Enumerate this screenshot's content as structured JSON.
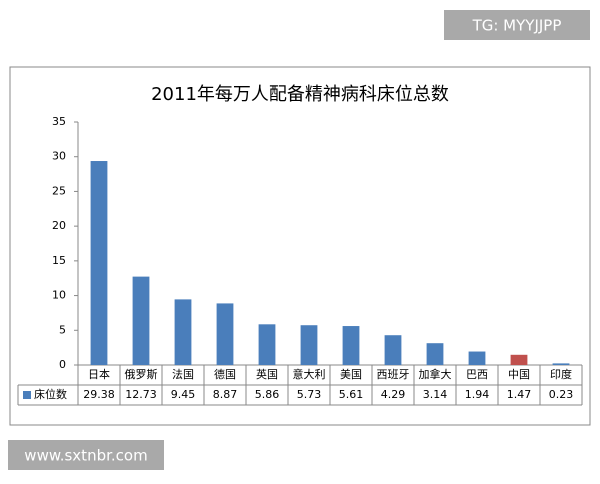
{
  "chart_data": {
    "type": "bar",
    "title": "2011年每万人配备精神病科床位总数",
    "categories": [
      "日本",
      "俄罗斯",
      "法国",
      "德国",
      "英国",
      "意大利",
      "美国",
      "西班牙",
      "加拿大",
      "巴西",
      "中国",
      "印度"
    ],
    "series": [
      {
        "name": "床位数",
        "color": "#4a7ebb",
        "values": [
          29.38,
          12.73,
          9.45,
          8.87,
          5.86,
          5.73,
          5.61,
          4.29,
          3.14,
          1.94,
          1.47,
          0.23
        ],
        "colors": [
          "#4a7ebb",
          "#4a7ebb",
          "#4a7ebb",
          "#4a7ebb",
          "#4a7ebb",
          "#4a7ebb",
          "#4a7ebb",
          "#4a7ebb",
          "#4a7ebb",
          "#4a7ebb",
          "#c0504d",
          "#4a7ebb"
        ]
      }
    ],
    "ylim": [
      0,
      35
    ],
    "yticks": [
      0,
      5,
      10,
      15,
      20,
      25,
      30,
      35
    ],
    "grid": false,
    "data_table": true
  },
  "watermarks": {
    "top": "TG: MYYJJPP",
    "bottom": "www.sxtnbr.com"
  }
}
